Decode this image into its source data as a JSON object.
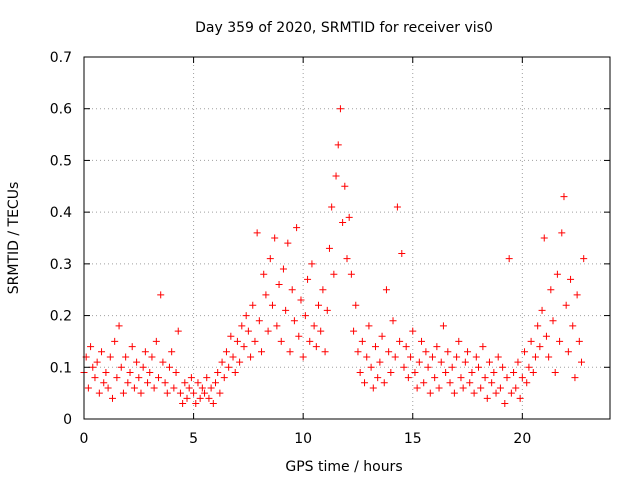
{
  "chart_data": {
    "type": "scatter",
    "title": "Day 359 of 2020, SRMTID for receiver vis0",
    "xlabel": "GPS time / hours",
    "ylabel": "SRMTID / TECUs",
    "xlim": [
      0,
      24
    ],
    "ylim": [
      0,
      0.7
    ],
    "xticks": [
      0,
      5,
      10,
      15,
      20
    ],
    "xtick_labels": [
      "0",
      "5",
      "10",
      "15",
      "20"
    ],
    "yticks": [
      0,
      0.1,
      0.2,
      0.3,
      0.4,
      0.5,
      0.6,
      0.7
    ],
    "ytick_labels": [
      "0",
      "0.1",
      "0.2",
      "0.3",
      "0.4",
      "0.5",
      "0.6",
      "0.7"
    ],
    "grid": true,
    "marker": "+",
    "marker_color": "#ff0000",
    "series": [
      {
        "name": "SRMTID",
        "x": [
          0.0,
          0.1,
          0.2,
          0.3,
          0.4,
          0.5,
          0.6,
          0.7,
          0.8,
          0.9,
          1.0,
          1.1,
          1.2,
          1.3,
          1.4,
          1.5,
          1.6,
          1.7,
          1.8,
          1.9,
          2.0,
          2.1,
          2.2,
          2.3,
          2.4,
          2.5,
          2.6,
          2.7,
          2.8,
          2.9,
          3.0,
          3.1,
          3.2,
          3.3,
          3.4,
          3.5,
          3.6,
          3.7,
          3.8,
          3.9,
          4.0,
          4.1,
          4.2,
          4.3,
          4.4,
          4.5,
          4.6,
          4.7,
          4.8,
          4.9,
          5.0,
          5.1,
          5.2,
          5.3,
          5.4,
          5.5,
          5.6,
          5.7,
          5.8,
          5.9,
          6.0,
          6.1,
          6.2,
          6.3,
          6.4,
          6.5,
          6.6,
          6.7,
          6.8,
          6.9,
          7.0,
          7.1,
          7.2,
          7.3,
          7.4,
          7.5,
          7.6,
          7.7,
          7.8,
          7.9,
          8.0,
          8.1,
          8.2,
          8.3,
          8.4,
          8.5,
          8.6,
          8.7,
          8.8,
          8.9,
          9.0,
          9.1,
          9.2,
          9.3,
          9.4,
          9.5,
          9.6,
          9.7,
          9.8,
          9.9,
          10.0,
          10.1,
          10.2,
          10.3,
          10.4,
          10.5,
          10.6,
          10.7,
          10.8,
          10.9,
          11.0,
          11.1,
          11.2,
          11.3,
          11.4,
          11.5,
          11.6,
          11.7,
          11.8,
          11.9,
          12.0,
          12.1,
          12.2,
          12.3,
          12.4,
          12.5,
          12.6,
          12.7,
          12.8,
          12.9,
          13.0,
          13.1,
          13.2,
          13.3,
          13.4,
          13.5,
          13.6,
          13.7,
          13.8,
          13.9,
          14.0,
          14.1,
          14.2,
          14.3,
          14.4,
          14.5,
          14.6,
          14.7,
          14.8,
          14.9,
          15.0,
          15.1,
          15.2,
          15.3,
          15.4,
          15.5,
          15.6,
          15.7,
          15.8,
          15.9,
          16.0,
          16.1,
          16.2,
          16.3,
          16.4,
          16.5,
          16.6,
          16.7,
          16.8,
          16.9,
          17.0,
          17.1,
          17.2,
          17.3,
          17.4,
          17.5,
          17.6,
          17.7,
          17.8,
          17.9,
          18.0,
          18.1,
          18.2,
          18.3,
          18.4,
          18.5,
          18.6,
          18.7,
          18.8,
          18.9,
          19.0,
          19.1,
          19.2,
          19.3,
          19.4,
          19.5,
          19.6,
          19.7,
          19.8,
          19.9,
          20.0,
          20.1,
          20.2,
          20.3,
          20.4,
          20.5,
          20.6,
          20.7,
          20.8,
          20.9,
          21.0,
          21.1,
          21.2,
          21.3,
          21.4,
          21.5,
          21.6,
          21.7,
          21.8,
          21.9,
          22.0,
          22.1,
          22.2,
          22.3,
          22.4,
          22.5,
          22.6,
          22.7,
          22.8
        ],
        "y": [
          0.09,
          0.12,
          0.06,
          0.14,
          0.1,
          0.08,
          0.11,
          0.05,
          0.13,
          0.07,
          0.09,
          0.06,
          0.12,
          0.04,
          0.15,
          0.08,
          0.18,
          0.1,
          0.05,
          0.12,
          0.07,
          0.09,
          0.14,
          0.06,
          0.11,
          0.08,
          0.05,
          0.1,
          0.13,
          0.07,
          0.09,
          0.12,
          0.06,
          0.15,
          0.08,
          0.24,
          0.11,
          0.07,
          0.05,
          0.1,
          0.13,
          0.06,
          0.09,
          0.17,
          0.05,
          0.03,
          0.07,
          0.04,
          0.06,
          0.08,
          0.05,
          0.03,
          0.07,
          0.04,
          0.06,
          0.05,
          0.08,
          0.04,
          0.06,
          0.03,
          0.07,
          0.09,
          0.05,
          0.11,
          0.08,
          0.13,
          0.1,
          0.16,
          0.12,
          0.09,
          0.15,
          0.11,
          0.18,
          0.14,
          0.2,
          0.17,
          0.12,
          0.22,
          0.15,
          0.36,
          0.19,
          0.13,
          0.28,
          0.24,
          0.17,
          0.31,
          0.22,
          0.35,
          0.18,
          0.26,
          0.15,
          0.29,
          0.21,
          0.34,
          0.13,
          0.25,
          0.19,
          0.37,
          0.16,
          0.23,
          0.12,
          0.2,
          0.27,
          0.15,
          0.3,
          0.18,
          0.14,
          0.22,
          0.17,
          0.25,
          0.13,
          0.21,
          0.33,
          0.41,
          0.28,
          0.47,
          0.53,
          0.6,
          0.38,
          0.45,
          0.31,
          0.39,
          0.28,
          0.17,
          0.22,
          0.13,
          0.09,
          0.15,
          0.07,
          0.12,
          0.18,
          0.1,
          0.06,
          0.14,
          0.08,
          0.11,
          0.16,
          0.07,
          0.25,
          0.13,
          0.09,
          0.19,
          0.12,
          0.41,
          0.15,
          0.32,
          0.1,
          0.14,
          0.08,
          0.12,
          0.17,
          0.09,
          0.06,
          0.11,
          0.15,
          0.07,
          0.13,
          0.1,
          0.05,
          0.12,
          0.08,
          0.14,
          0.06,
          0.11,
          0.18,
          0.09,
          0.13,
          0.07,
          0.1,
          0.05,
          0.12,
          0.15,
          0.08,
          0.06,
          0.11,
          0.13,
          0.07,
          0.09,
          0.05,
          0.12,
          0.1,
          0.06,
          0.14,
          0.08,
          0.04,
          0.11,
          0.07,
          0.09,
          0.05,
          0.12,
          0.06,
          0.1,
          0.03,
          0.08,
          0.31,
          0.05,
          0.09,
          0.06,
          0.11,
          0.04,
          0.08,
          0.13,
          0.07,
          0.1,
          0.15,
          0.09,
          0.12,
          0.18,
          0.14,
          0.21,
          0.35,
          0.16,
          0.12,
          0.25,
          0.19,
          0.09,
          0.28,
          0.15,
          0.36,
          0.43,
          0.22,
          0.13,
          0.27,
          0.18,
          0.08,
          0.24,
          0.15,
          0.11,
          0.31
        ]
      }
    ]
  }
}
